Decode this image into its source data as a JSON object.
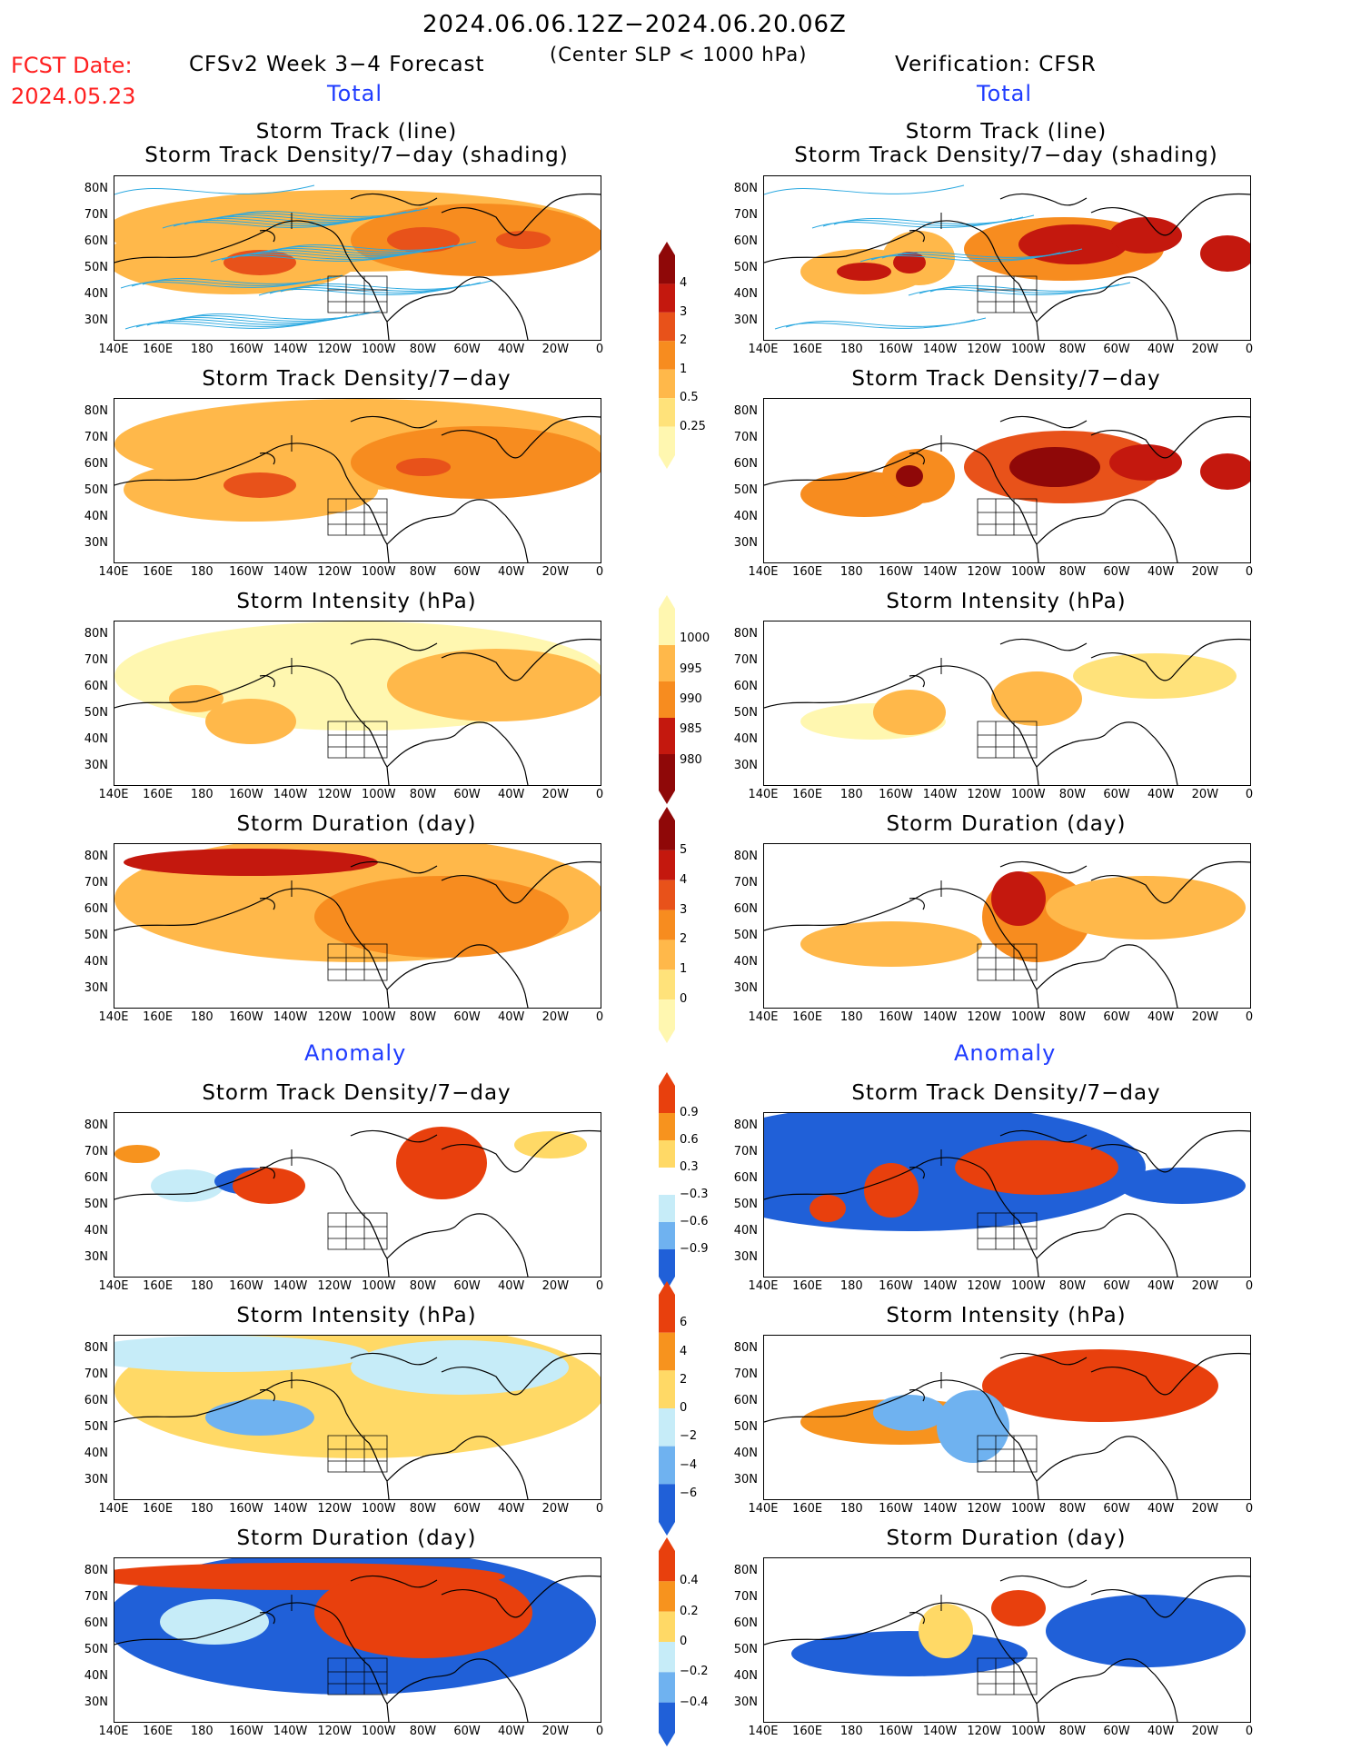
{
  "header": {
    "date_range": "2024.06.06.12Z−2024.06.20.06Z",
    "fcst_label": "FCST Date:",
    "fcst_date": "2024.05.23",
    "left_title": "CFSv2 Week 3−4 Forecast",
    "center_note": "(Center SLP < 1000 hPa)",
    "right_title": "Verification: CFSR",
    "section_total": "Total",
    "section_anomaly": "Anomaly"
  },
  "panel_titles": {
    "track_line": "Storm Track (line)",
    "track_shading": "Storm Track Density/7−day (shading)",
    "density": "Storm Track Density/7−day",
    "intensity": "Storm Intensity (hPa)",
    "duration": "Storm Duration (day)"
  },
  "axes": {
    "lat_labels": [
      "80N",
      "70N",
      "60N",
      "50N",
      "40N",
      "30N"
    ],
    "lon_labels": [
      "140E",
      "160E",
      "180",
      "160W",
      "140W",
      "120W",
      "100W",
      "80W",
      "60W",
      "40W",
      "20W",
      "0"
    ]
  },
  "colorbars": {
    "density_total": [
      "4",
      "3",
      "2",
      "1",
      "0.5",
      "0.25"
    ],
    "intensity_total": [
      "1000",
      "995",
      "990",
      "985",
      "980"
    ],
    "duration_total": [
      "5",
      "4",
      "3",
      "2",
      "1",
      "0"
    ],
    "density_anom": [
      "0.9",
      "0.6",
      "0.3",
      "−0.3",
      "−0.6",
      "−0.9"
    ],
    "intensity_anom": [
      "6",
      "4",
      "2",
      "0",
      "−2",
      "−4",
      "−6"
    ],
    "duration_anom": [
      "0.4",
      "0.2",
      "0",
      "−0.2",
      "−0.4"
    ]
  },
  "colors": {
    "total_scale": [
      "#fff7b0",
      "#ffe27a",
      "#ffb84a",
      "#f78c1f",
      "#e8521a",
      "#c4180e",
      "#8f0808"
    ],
    "anom_pos": [
      "#ffd966",
      "#f7931e",
      "#e8400d"
    ],
    "anom_neg": [
      "#c6ecf8",
      "#6fb2f0",
      "#2060d8"
    ],
    "track_line": "#2aa8e0",
    "section_label": "#1f3cff",
    "fcst_text": "#ff2020"
  }
}
